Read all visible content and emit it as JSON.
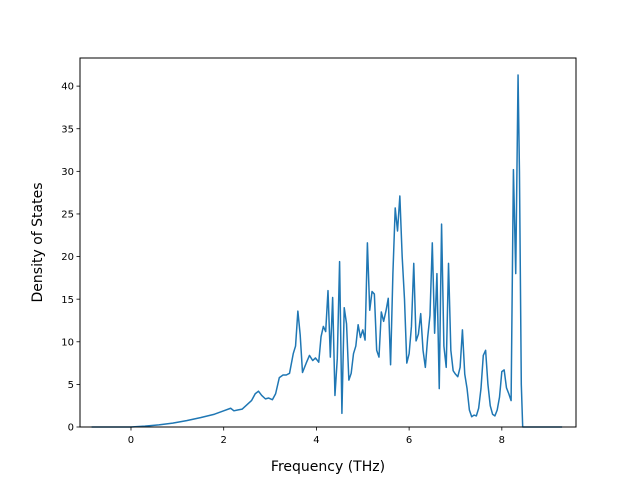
{
  "chart_data": {
    "type": "line",
    "title": "",
    "xlabel": "Frequency (THz)",
    "ylabel": "Density of States",
    "xlim": [
      -1.1,
      9.6
    ],
    "ylim": [
      0,
      43.3
    ],
    "xticks": [
      0,
      2,
      4,
      6,
      8
    ],
    "yticks": [
      0,
      5,
      10,
      15,
      20,
      25,
      30,
      35,
      40
    ],
    "grid": false,
    "legend": "none",
    "color": "#1f77b4",
    "series": [
      {
        "x": [
          -0.85,
          0,
          0.3,
          0.6,
          0.9,
          1.2,
          1.5,
          1.8,
          2.0,
          2.15,
          2.22,
          2.3,
          2.4,
          2.5,
          2.6,
          2.68,
          2.75,
          2.82,
          2.9,
          2.97,
          3.05,
          3.12,
          3.2,
          3.28,
          3.35,
          3.42,
          3.5,
          3.55,
          3.6,
          3.65,
          3.7,
          3.78,
          3.85,
          3.92,
          3.98,
          4.05,
          4.1,
          4.15,
          4.2,
          4.25,
          4.3,
          4.35,
          4.4,
          4.45,
          4.5,
          4.55,
          4.6,
          4.65,
          4.7,
          4.75,
          4.8,
          4.85,
          4.9,
          4.95,
          5.0,
          5.05,
          5.1,
          5.15,
          5.2,
          5.25,
          5.3,
          5.35,
          5.4,
          5.45,
          5.5,
          5.55,
          5.6,
          5.65,
          5.7,
          5.75,
          5.8,
          5.85,
          5.9,
          5.95,
          6.0,
          6.05,
          6.1,
          6.15,
          6.2,
          6.25,
          6.3,
          6.35,
          6.4,
          6.45,
          6.5,
          6.55,
          6.6,
          6.65,
          6.7,
          6.75,
          6.8,
          6.85,
          6.9,
          6.95,
          7.0,
          7.05,
          7.1,
          7.15,
          7.2,
          7.25,
          7.3,
          7.35,
          7.4,
          7.45,
          7.5,
          7.55,
          7.6,
          7.65,
          7.7,
          7.75,
          7.8,
          7.85,
          7.9,
          7.95,
          8.0,
          8.05,
          8.1,
          8.15,
          8.2,
          8.25,
          8.3,
          8.35,
          8.38,
          8.42,
          8.45,
          8.5,
          9.3
        ],
        "y": [
          0,
          0,
          0.1,
          0.25,
          0.45,
          0.75,
          1.1,
          1.5,
          1.9,
          2.2,
          1.9,
          2.0,
          2.1,
          2.6,
          3.1,
          3.9,
          4.2,
          3.7,
          3.3,
          3.4,
          3.2,
          3.9,
          5.8,
          6.1,
          6.1,
          6.3,
          8.6,
          9.5,
          13.6,
          10.8,
          6.4,
          7.5,
          8.4,
          7.8,
          8.1,
          7.6,
          10.6,
          11.8,
          11.2,
          16.0,
          8.2,
          15.2,
          3.7,
          8.0,
          19.4,
          1.6,
          14.0,
          12.1,
          5.5,
          6.3,
          8.6,
          9.5,
          12.0,
          10.5,
          11.4,
          10.2,
          21.6,
          13.7,
          15.9,
          15.6,
          9.0,
          8.2,
          13.5,
          12.4,
          13.6,
          15.1,
          7.3,
          18.0,
          25.7,
          23.0,
          27.1,
          20.0,
          15.0,
          7.5,
          8.6,
          11.8,
          19.2,
          10.1,
          10.9,
          13.3,
          9.0,
          7.0,
          10.5,
          13.1,
          21.6,
          11.0,
          18.0,
          4.5,
          23.8,
          9.5,
          7.0,
          19.2,
          9.0,
          6.6,
          6.2,
          5.9,
          7.0,
          11.4,
          6.2,
          4.5,
          2.0,
          1.2,
          1.4,
          1.3,
          2.2,
          4.5,
          8.4,
          9.0,
          5.0,
          2.5,
          1.5,
          1.3,
          2.0,
          3.5,
          6.5,
          6.7,
          4.6,
          3.9,
          3.1,
          30.2,
          18.0,
          41.3,
          30.0,
          5.0,
          0,
          0,
          0
        ]
      }
    ]
  }
}
